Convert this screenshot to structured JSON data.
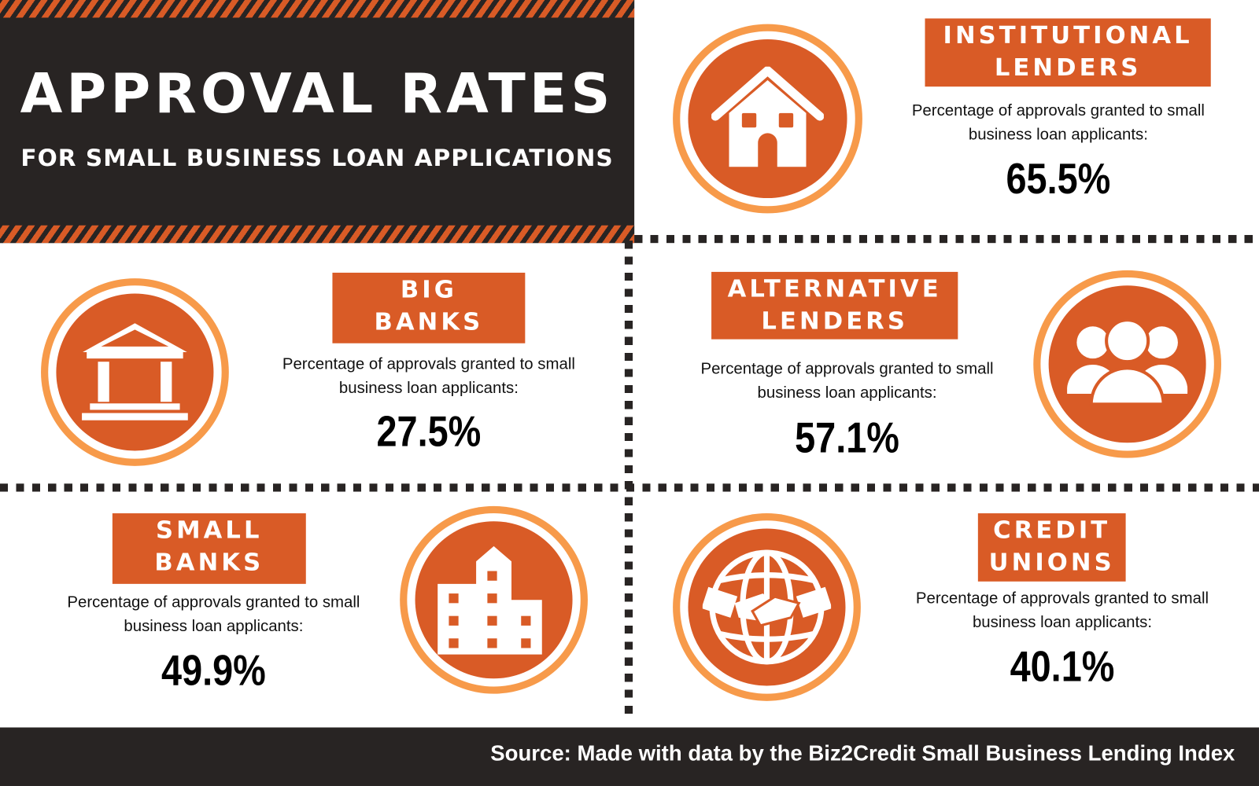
{
  "header": {
    "title": "APPROVAL RATES",
    "subtitle": "FOR SMALL BUSINESS LOAN APPLICATIONS"
  },
  "colors": {
    "dark": "#282423",
    "accent": "#d95b26",
    "ring": "#f79a4a"
  },
  "description": "Percentage of approvals granted to small business loan applicants:",
  "lenders": [
    {
      "line1": "INSTITUTIONAL",
      "line2": "LENDERS",
      "value": "65.5%",
      "icon": "house-icon"
    },
    {
      "line1": "BIG",
      "line2": "BANKS",
      "value": "27.5%",
      "icon": "bank-building-icon"
    },
    {
      "line1": "ALTERNATIVE",
      "line2": "LENDERS",
      "value": "57.1%",
      "icon": "people-group-icon"
    },
    {
      "line1": "SMALL",
      "line2": "BANKS",
      "value": "49.9%",
      "icon": "office-building-icon"
    },
    {
      "line1": "CREDIT",
      "line2": "UNIONS",
      "value": "40.1%",
      "icon": "globe-handshake-icon"
    }
  ],
  "footer": {
    "source": "Source: Made with data by the Biz2Credit Small Business Lending Index"
  }
}
